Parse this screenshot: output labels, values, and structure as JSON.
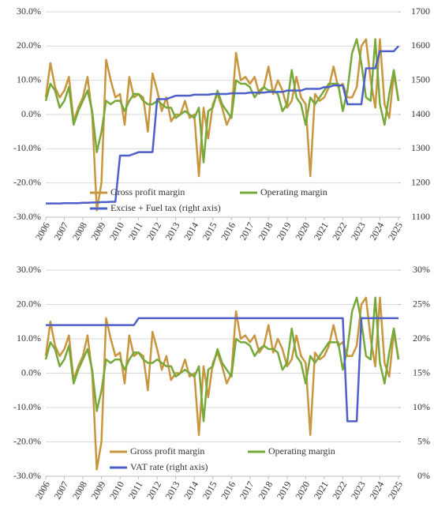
{
  "chart_data": [
    {
      "type": "line",
      "categories": [
        "2006",
        null,
        null,
        null,
        "2007",
        null,
        null,
        null,
        "2008",
        null,
        null,
        null,
        "2009",
        null,
        null,
        null,
        "2010",
        null,
        null,
        null,
        "2011",
        null,
        null,
        null,
        "2012",
        null,
        null,
        null,
        "2013",
        null,
        null,
        null,
        "2014",
        null,
        null,
        null,
        "2015",
        null,
        null,
        null,
        "2016",
        null,
        null,
        null,
        "2017",
        null,
        null,
        null,
        "2018",
        null,
        null,
        null,
        "2019",
        null,
        null,
        null,
        "2020",
        null,
        null,
        null,
        "2021",
        null,
        null,
        null,
        "2022",
        null,
        null,
        null,
        "2023",
        null,
        null,
        null,
        "2024",
        null,
        null,
        null,
        "2025"
      ],
      "ylim": [
        -30,
        30
      ],
      "yticks": [
        {
          "value": -30,
          "label": "-30.0%"
        },
        {
          "value": -20,
          "label": "-20.0%"
        },
        {
          "value": -10,
          "label": "-10.0%"
        },
        {
          "value": 0,
          "label": "0.0%"
        },
        {
          "value": 10,
          "label": "10.0%"
        },
        {
          "value": 20,
          "label": "20.0%"
        },
        {
          "value": 30,
          "label": "30.0%"
        }
      ],
      "y2lim": [
        1100,
        1700
      ],
      "y2ticks": [
        1100,
        1200,
        1300,
        1400,
        1500,
        1600,
        1700
      ],
      "grid": true,
      "series": [
        {
          "name": "Gross profit margin",
          "color": "#c8963e",
          "values": [
            5,
            15,
            8,
            5,
            7,
            11,
            -2,
            2,
            5,
            11,
            0,
            -28,
            -20,
            16,
            10,
            5,
            6,
            -3,
            11,
            5,
            6,
            5,
            -5,
            12,
            7,
            1,
            5,
            -2,
            0,
            0,
            4,
            -1,
            0,
            -18,
            2,
            -7,
            3,
            6,
            2,
            -3,
            0,
            18,
            10,
            11,
            9,
            11,
            6,
            8,
            14,
            6,
            10,
            7,
            2,
            4,
            11,
            5,
            3,
            -18,
            6,
            4,
            5,
            8,
            14,
            8,
            9,
            5,
            5,
            8,
            20,
            22,
            10,
            2,
            22,
            3,
            -1,
            12,
            4
          ]
        },
        {
          "name": "Operating margin",
          "color": "#76a83a",
          "values": [
            4,
            9,
            7,
            2,
            4,
            8,
            -3,
            1,
            4,
            7,
            1,
            -11,
            -5,
            4,
            3,
            4,
            4,
            1,
            4,
            6,
            6,
            4,
            3,
            3,
            4,
            3,
            2,
            2,
            -1,
            0,
            1,
            0,
            -1,
            2,
            -14,
            1,
            2,
            7,
            3,
            1,
            -1,
            10,
            9,
            9,
            8,
            5,
            7,
            8,
            7,
            7,
            6,
            1,
            3,
            13,
            5,
            3,
            -3,
            5,
            3,
            5,
            7,
            9,
            9,
            9,
            1,
            7,
            18,
            22,
            15,
            5,
            4,
            22,
            3,
            -3,
            6,
            13,
            4
          ]
        },
        {
          "name": "Excise + Fuel tax (right axis)",
          "color": "#4f5fc8",
          "axis": "y2",
          "values": [
            1140,
            1140,
            1140,
            1140,
            1141,
            1141,
            1141,
            1141,
            1142,
            1142,
            1143,
            1143,
            1144,
            1144,
            1145,
            1145,
            1280,
            1280,
            1280,
            1285,
            1290,
            1290,
            1290,
            1290,
            1445,
            1445,
            1445,
            1450,
            1455,
            1455,
            1455,
            1455,
            1458,
            1458,
            1458,
            1458,
            1460,
            1460,
            1460,
            1460,
            1462,
            1462,
            1462,
            1462,
            1464,
            1464,
            1464,
            1464,
            1466,
            1466,
            1466,
            1466,
            1470,
            1470,
            1470,
            1470,
            1475,
            1475,
            1475,
            1475,
            1480,
            1480,
            1485,
            1485,
            1485,
            1430,
            1430,
            1430,
            1430,
            1535,
            1535,
            1535,
            1585,
            1585,
            1585,
            1585,
            1600
          ]
        }
      ]
    },
    {
      "type": "line",
      "categories": [
        "2006",
        null,
        null,
        null,
        "2007",
        null,
        null,
        null,
        "2008",
        null,
        null,
        null,
        "2009",
        null,
        null,
        null,
        "2010",
        null,
        null,
        null,
        "2011",
        null,
        null,
        null,
        "2012",
        null,
        null,
        null,
        "2013",
        null,
        null,
        null,
        "2014",
        null,
        null,
        null,
        "2015",
        null,
        null,
        null,
        "2016",
        null,
        null,
        null,
        "2017",
        null,
        null,
        null,
        "2018",
        null,
        null,
        null,
        "2019",
        null,
        null,
        null,
        "2020",
        null,
        null,
        null,
        "2021",
        null,
        null,
        null,
        "2022",
        null,
        null,
        null,
        "2023",
        null,
        null,
        null,
        "2024",
        null,
        null,
        null,
        "2025"
      ],
      "ylim": [
        -30,
        30
      ],
      "yticks": [
        {
          "value": -30,
          "label": "-30.0%"
        },
        {
          "value": -20,
          "label": "-20.0%"
        },
        {
          "value": -10,
          "label": "-10.0%"
        },
        {
          "value": 0,
          "label": "0.0%"
        },
        {
          "value": 10,
          "label": "10.0%"
        },
        {
          "value": 20,
          "label": "20.0%"
        },
        {
          "value": 30,
          "label": "30.0%"
        }
      ],
      "y2lim": [
        0,
        30
      ],
      "y2ticks": [
        {
          "value": 0,
          "label": "0%"
        },
        {
          "value": 5,
          "label": "5%"
        },
        {
          "value": 10,
          "label": "10%"
        },
        {
          "value": 15,
          "label": "15%"
        },
        {
          "value": 20,
          "label": "20%"
        },
        {
          "value": 25,
          "label": "25%"
        },
        {
          "value": 30,
          "label": "30%"
        }
      ],
      "grid": true,
      "series": [
        {
          "name": "Gross profit margin",
          "color": "#c8963e",
          "values": [
            5,
            15,
            8,
            5,
            7,
            11,
            -2,
            2,
            5,
            11,
            0,
            -28,
            -20,
            16,
            10,
            5,
            6,
            -3,
            11,
            5,
            6,
            5,
            -5,
            12,
            7,
            1,
            5,
            -2,
            0,
            0,
            4,
            -1,
            0,
            -18,
            2,
            -7,
            3,
            6,
            2,
            -3,
            0,
            18,
            10,
            11,
            9,
            11,
            6,
            8,
            14,
            6,
            10,
            7,
            2,
            4,
            11,
            5,
            3,
            -18,
            6,
            4,
            5,
            8,
            14,
            8,
            9,
            5,
            5,
            8,
            20,
            22,
            10,
            2,
            22,
            3,
            -1,
            12,
            4
          ]
        },
        {
          "name": "Operating margin",
          "color": "#76a83a",
          "values": [
            4,
            9,
            7,
            2,
            4,
            8,
            -3,
            1,
            4,
            7,
            1,
            -11,
            -5,
            4,
            3,
            4,
            4,
            1,
            4,
            6,
            6,
            4,
            3,
            3,
            4,
            3,
            2,
            2,
            -1,
            0,
            1,
            0,
            -1,
            2,
            -14,
            1,
            2,
            7,
            3,
            1,
            -1,
            10,
            9,
            9,
            8,
            5,
            7,
            8,
            7,
            7,
            6,
            1,
            3,
            13,
            5,
            3,
            -3,
            5,
            3,
            5,
            7,
            9,
            9,
            9,
            1,
            7,
            18,
            22,
            15,
            5,
            4,
            22,
            3,
            -3,
            6,
            13,
            4
          ]
        },
        {
          "name": "VAT rate (right axis)",
          "color": "#4f5fc8",
          "axis": "y2",
          "values": [
            22,
            22,
            22,
            22,
            22,
            22,
            22,
            22,
            22,
            22,
            22,
            22,
            22,
            22,
            22,
            22,
            22,
            22,
            22,
            22,
            23,
            23,
            23,
            23,
            23,
            23,
            23,
            23,
            23,
            23,
            23,
            23,
            23,
            23,
            23,
            23,
            23,
            23,
            23,
            23,
            23,
            23,
            23,
            23,
            23,
            23,
            23,
            23,
            23,
            23,
            23,
            23,
            23,
            23,
            23,
            23,
            23,
            23,
            23,
            23,
            23,
            23,
            23,
            23,
            23,
            8,
            8,
            8,
            23,
            23,
            23,
            23,
            23,
            23,
            23,
            23,
            23
          ]
        }
      ]
    }
  ]
}
